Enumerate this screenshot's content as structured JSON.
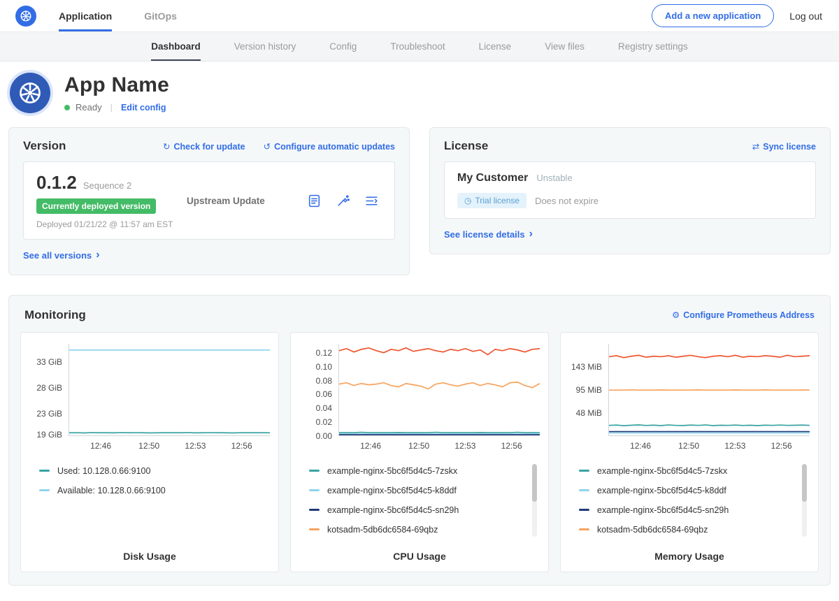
{
  "topnav": {
    "tabs": [
      {
        "label": "Application",
        "active": true
      },
      {
        "label": "GitOps",
        "active": false
      }
    ],
    "add_button": "Add a new application",
    "logout": "Log out"
  },
  "subnav": {
    "items": [
      "Dashboard",
      "Version history",
      "Config",
      "Troubleshoot",
      "License",
      "View files",
      "Registry settings"
    ],
    "active_index": 0
  },
  "app": {
    "name": "App Name",
    "status": "Ready",
    "edit_config": "Edit config"
  },
  "version_card": {
    "title": "Version",
    "check_update_label": "Check for update",
    "configure_updates_label": "Configure automatic updates",
    "version_number": "0.1.2",
    "sequence": "Sequence 2",
    "deployed_badge": "Currently deployed version",
    "deployed_text": "Deployed 01/21/22 @ 11:57 am EST",
    "upstream_label": "Upstream Update",
    "see_all_label": "See all versions"
  },
  "license_card": {
    "title": "License",
    "sync_label": "Sync license",
    "customer_name": "My Customer",
    "channel": "Unstable",
    "license_type_badge": "Trial license",
    "expiration": "Does not expire",
    "details_label": "See license details"
  },
  "monitoring": {
    "title": "Monitoring",
    "configure_label": "Configure Prometheus Address"
  },
  "icons": {
    "check_update": "↻",
    "auto_update": "↺",
    "sync": "⇄",
    "gear": "⚙",
    "clock": "◷",
    "chevron": "›"
  },
  "colors": {
    "accent_blue": "#326de6",
    "badge_green": "#44bb66",
    "trial_badge_bg": "#e4f2fb",
    "trial_badge_text": "#5b9fd4"
  },
  "chart_data": [
    {
      "type": "line",
      "title": "Disk Usage",
      "ylim": [
        18.8,
        36.5
      ],
      "y_ticks": [
        {
          "label": "33 GiB",
          "value": 33
        },
        {
          "label": "28 GiB",
          "value": 28
        },
        {
          "label": "23 GiB",
          "value": 23
        },
        {
          "label": "19 GiB",
          "value": 19
        }
      ],
      "x_ticks": [
        "12:46",
        "12:50",
        "12:53",
        "12:56"
      ],
      "x_tick_pos": [
        0.16,
        0.4,
        0.63,
        0.86
      ],
      "has_scrollbar": false,
      "series": [
        {
          "name": "Available: 10.128.0.66:9100",
          "color": "#8fd5ec",
          "values": [
            35.3,
            35.3,
            35.3,
            35.3,
            35.3,
            35.3,
            35.3,
            35.3,
            35.3,
            35.3,
            35.3,
            35.3,
            35.3,
            35.3,
            35.3,
            35.3,
            35.3,
            35.3,
            35.3,
            35.3,
            35.3,
            35.3,
            35.3,
            35.3,
            35.3,
            35.3,
            35.3,
            35.3
          ]
        },
        {
          "name": "Used: 10.128.0.66:9100",
          "color": "#37a3a2",
          "values": [
            19.3,
            19.32,
            19.28,
            19.33,
            19.3,
            19.31,
            19.29,
            19.33,
            19.3,
            19.32,
            19.3,
            19.28,
            19.32,
            19.3,
            19.31,
            19.3,
            19.33,
            19.29,
            19.3,
            19.32,
            19.3,
            19.31,
            19.28,
            19.32,
            19.3,
            19.3,
            19.31,
            19.3
          ]
        }
      ],
      "legend": [
        {
          "label": "Used: 10.128.0.66:9100",
          "color": "#37a3a2"
        },
        {
          "label": "Available: 10.128.0.66:9100",
          "color": "#8fd5ec"
        }
      ]
    },
    {
      "type": "line",
      "title": "CPU Usage",
      "ylim": [
        0,
        0.134
      ],
      "y_ticks": [
        {
          "label": "0.12",
          "value": 0.12
        },
        {
          "label": "0.10",
          "value": 0.1
        },
        {
          "label": "0.08",
          "value": 0.08
        },
        {
          "label": "0.06",
          "value": 0.06
        },
        {
          "label": "0.04",
          "value": 0.04
        },
        {
          "label": "0.02",
          "value": 0.02
        },
        {
          "label": "0.00",
          "value": 0
        }
      ],
      "x_ticks": [
        "12:46",
        "12:50",
        "12:53",
        "12:56"
      ],
      "x_tick_pos": [
        0.16,
        0.4,
        0.63,
        0.86
      ],
      "has_scrollbar": true,
      "series": [
        {
          "name": "",
          "color": "#ee5631",
          "values": [
            0.124,
            0.127,
            0.122,
            0.126,
            0.128,
            0.124,
            0.121,
            0.126,
            0.124,
            0.128,
            0.123,
            0.125,
            0.127,
            0.124,
            0.122,
            0.126,
            0.124,
            0.127,
            0.123,
            0.125,
            0.118,
            0.126,
            0.124,
            0.127,
            0.125,
            0.122,
            0.126,
            0.127
          ]
        },
        {
          "name": "kotsadm-5db6dc6584-69qbz",
          "color": "#f7a35c",
          "values": [
            0.075,
            0.077,
            0.073,
            0.076,
            0.074,
            0.075,
            0.077,
            0.073,
            0.071,
            0.076,
            0.074,
            0.072,
            0.068,
            0.075,
            0.077,
            0.074,
            0.072,
            0.075,
            0.077,
            0.073,
            0.076,
            0.074,
            0.071,
            0.077,
            0.078,
            0.073,
            0.07,
            0.076
          ]
        },
        {
          "name": "example-nginx-5bc6f5d4c5-7zskx",
          "color": "#37a3a2",
          "values": [
            0.004,
            0.004,
            0.004,
            0.0045,
            0.004,
            0.004,
            0.004,
            0.004,
            0.0042,
            0.004,
            0.004,
            0.004,
            0.004,
            0.0045,
            0.004,
            0.004,
            0.004,
            0.004,
            0.004,
            0.0042,
            0.004,
            0.004,
            0.004,
            0.004,
            0.0045,
            0.004,
            0.004,
            0.004
          ]
        },
        {
          "name": "example-nginx-5bc6f5d4c5-k8ddf",
          "color": "#8fd5ec",
          "values": [
            0.002,
            0.002,
            0.002,
            0.002,
            0.002,
            0.002,
            0.002,
            0.002,
            0.002,
            0.002,
            0.002,
            0.002,
            0.002,
            0.002,
            0.002,
            0.002,
            0.002,
            0.002,
            0.002,
            0.002,
            0.002,
            0.002,
            0.002,
            0.002,
            0.002,
            0.002,
            0.002,
            0.002
          ]
        },
        {
          "name": "example-nginx-5bc6f5d4c5-sn29h",
          "color": "#1f3a77",
          "values": [
            0.001,
            0.001,
            0.001,
            0.001,
            0.001,
            0.001,
            0.001,
            0.001,
            0.001,
            0.001,
            0.001,
            0.001,
            0.001,
            0.001,
            0.001,
            0.001,
            0.001,
            0.001,
            0.001,
            0.001,
            0.001,
            0.001,
            0.001,
            0.001,
            0.001,
            0.001,
            0.001,
            0.001
          ]
        }
      ],
      "legend": [
        {
          "label": "example-nginx-5bc6f5d4c5-7zskx",
          "color": "#37a3a2"
        },
        {
          "label": "example-nginx-5bc6f5d4c5-k8ddf",
          "color": "#8fd5ec"
        },
        {
          "label": "example-nginx-5bc6f5d4c5-sn29h",
          "color": "#1f3a77"
        },
        {
          "label": "kotsadm-5db6dc6584-69qbz",
          "color": "#f7a35c"
        }
      ]
    },
    {
      "type": "line",
      "title": "Memory Usage",
      "ylim": [
        0,
        192
      ],
      "y_ticks": [
        {
          "label": "143 MiB",
          "value": 143
        },
        {
          "label": "95 MiB",
          "value": 95
        },
        {
          "label": "48 MiB",
          "value": 48
        }
      ],
      "x_ticks": [
        "12:46",
        "12:50",
        "12:53",
        "12:56"
      ],
      "x_tick_pos": [
        0.16,
        0.4,
        0.63,
        0.86
      ],
      "has_scrollbar": true,
      "series": [
        {
          "name": "",
          "color": "#ee5631",
          "values": [
            165,
            167,
            163,
            166,
            168,
            164,
            166,
            165,
            167,
            164,
            166,
            168,
            165,
            163,
            166,
            167,
            165,
            168,
            164,
            166,
            165,
            167,
            166,
            164,
            168,
            165,
            166,
            167
          ]
        },
        {
          "name": "kotsadm-5db6dc6584-69qbz",
          "color": "#f7a35c",
          "values": [
            95,
            95,
            95,
            95.5,
            95,
            95,
            95,
            95.3,
            95,
            95,
            95,
            95,
            95.4,
            95,
            95,
            95,
            95,
            95.2,
            95,
            95,
            95,
            95.4,
            95,
            95,
            95,
            95,
            95.3,
            95
          ]
        },
        {
          "name": "example-nginx-5bc6f5d4c5-7zskx",
          "color": "#37a3a2",
          "values": [
            21,
            21.6,
            20.4,
            21.2,
            22,
            20.8,
            21.4,
            20.6,
            21.8,
            21,
            20.7,
            21.5,
            21,
            21.8,
            20.5,
            21.2,
            21,
            21.6,
            20.8,
            21.3,
            20.6,
            21.4,
            21,
            21.7,
            20.9,
            21.2,
            21.5,
            21
          ]
        },
        {
          "name": "example-nginx-5bc6f5d4c5-sn29h",
          "color": "#1f3a77",
          "values": [
            8,
            8,
            8,
            8,
            8,
            8,
            8,
            8,
            8,
            8,
            8,
            8,
            8,
            8,
            8,
            8,
            8,
            8,
            8,
            8,
            8,
            8,
            8,
            8,
            8,
            8,
            8,
            8
          ]
        },
        {
          "name": "example-nginx-5bc6f5d4c5-k8ddf",
          "color": "#8fd5ec",
          "values": [
            5,
            5,
            5,
            5,
            5,
            5,
            5,
            5,
            5,
            5,
            5,
            5,
            5,
            5,
            5,
            5,
            5,
            5,
            5,
            5,
            5,
            5,
            5,
            5,
            5,
            5,
            5,
            5
          ]
        }
      ],
      "legend": [
        {
          "label": "example-nginx-5bc6f5d4c5-7zskx",
          "color": "#37a3a2"
        },
        {
          "label": "example-nginx-5bc6f5d4c5-k8ddf",
          "color": "#8fd5ec"
        },
        {
          "label": "example-nginx-5bc6f5d4c5-sn29h",
          "color": "#1f3a77"
        },
        {
          "label": "kotsadm-5db6dc6584-69qbz",
          "color": "#f7a35c"
        }
      ]
    }
  ]
}
